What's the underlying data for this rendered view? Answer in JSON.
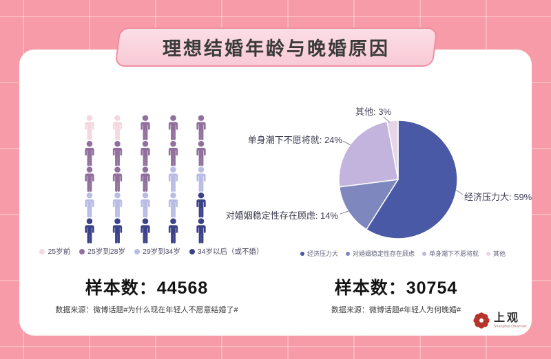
{
  "page": {
    "title_banner": "理想结婚年龄与晚婚原因"
  },
  "theme": {
    "background_pink": "#F69BA7",
    "banner_fill": "#FBD7DF",
    "banner_border": "#EE8FA0",
    "card": "#FFFFFF"
  },
  "chart_data": [
    {
      "type": "pictogram",
      "categories": [
        "25岁前",
        "25岁到28岁",
        "29岁到34岁",
        "34岁以后（或不婚）"
      ],
      "values": [
        2,
        11,
        6,
        6
      ],
      "total_icons": 25,
      "colors": [
        "#F3D8DF",
        "#91709E",
        "#B9BDE5",
        "#3C4288"
      ],
      "grid_rows": [
        [
          0,
          0,
          1,
          1,
          1
        ],
        [
          1,
          1,
          1,
          1,
          1
        ],
        [
          1,
          1,
          1,
          2,
          2
        ],
        [
          2,
          2,
          2,
          2,
          3
        ],
        [
          3,
          3,
          3,
          3,
          3
        ]
      ],
      "legend_position": "bottom",
      "sample_label": "样本数：44568",
      "source": "数据来源：微博话题#为什么现在年轻人不愿意结婚了#"
    },
    {
      "type": "pie",
      "categories": [
        "经济压力大",
        "对婚姻稳定性存在顾虑",
        "单身潮下不愿将就",
        "其他"
      ],
      "values": [
        59,
        14,
        24,
        3
      ],
      "colors": [
        "#4A59A5",
        "#7E88BF",
        "#C2B4DC",
        "#E7D5E7"
      ],
      "start_angle_deg": 0,
      "direction": "clockwise",
      "legend_position": "bottom",
      "callout_labels": {
        "right": "经济压力大: 59%",
        "top": "其他: 3%",
        "left_upper": "单身潮下不愿将就: 24%",
        "left_lower": "对婚姻稳定性存在顾虑: 14%"
      },
      "sample_label": "样本数：30754",
      "source": "数据来源：微博话题#年轻人为何晚婚#"
    }
  ],
  "logo": {
    "name": "上观",
    "subtext": "Shanghai Observer",
    "color": "#B5342C"
  }
}
